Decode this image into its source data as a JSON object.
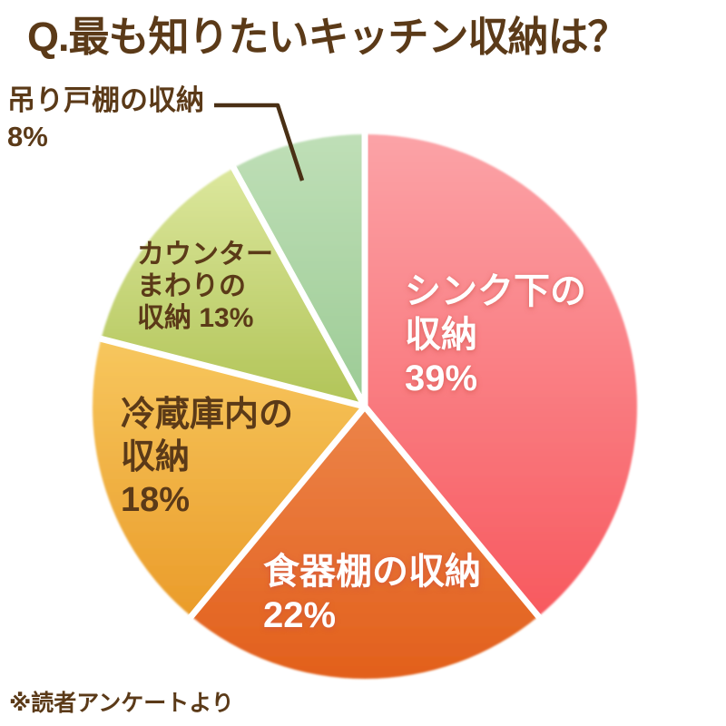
{
  "title": "Q.最も知りたいキッチン収納は？",
  "footnote": "※読者アンケートより",
  "colors": {
    "background": "#FFFFFF",
    "title_text": "#5B3A18",
    "dark_label_text": "#5B3A18",
    "light_label_text": "#FFFFFF",
    "slice_separator": "#FFFFFF",
    "leader_line": "#4A3015"
  },
  "chart_data": {
    "type": "pie",
    "title": "Q.最も知りたいキッチン収納は？",
    "source_note": "※読者アンケートより",
    "unit": "%",
    "start_angle_deg": 0,
    "direction": "clockwise",
    "legend_position": "none",
    "labels": [
      "シンク下の収納",
      "食器棚の収納",
      "冷蔵庫内の収納",
      "カウンターまわりの収納",
      "吊り戸棚の収納"
    ],
    "values": [
      39,
      22,
      18,
      13,
      8
    ],
    "slices": [
      {
        "label": "シンク下の収納",
        "value": 39,
        "display": "シンク下の\n収納\n39%",
        "label_placement": "inside",
        "color_light": "#FBA3A7",
        "color_dark": "#F8595F",
        "text_color": "#FFFFFF"
      },
      {
        "label": "食器棚の収納",
        "value": 22,
        "display": "食器棚の収納\n22%",
        "label_placement": "inside",
        "color_light": "#EC8449",
        "color_dark": "#E2601C",
        "text_color": "#FFFFFF"
      },
      {
        "label": "冷蔵庫内の収納",
        "value": 18,
        "display": "冷蔵庫内の\n収納\n18%",
        "label_placement": "inside",
        "color_light": "#F7C75E",
        "color_dark": "#EA9C2A",
        "text_color": "#5B3A18"
      },
      {
        "label": "カウンターまわりの収納",
        "value": 13,
        "display": "カウンター\nまわりの\n収納 13%",
        "label_placement": "inside",
        "color_light": "#DCE79D",
        "color_dark": "#B1C457",
        "text_color": "#5B3A18"
      },
      {
        "label": "吊り戸棚の収納",
        "value": 8,
        "display": "吊り戸棚の収納\n8%",
        "label_placement": "outside",
        "color_light": "#BFDFB7",
        "color_dark": "#9CCB95",
        "text_color": "#5B3A18"
      }
    ]
  }
}
